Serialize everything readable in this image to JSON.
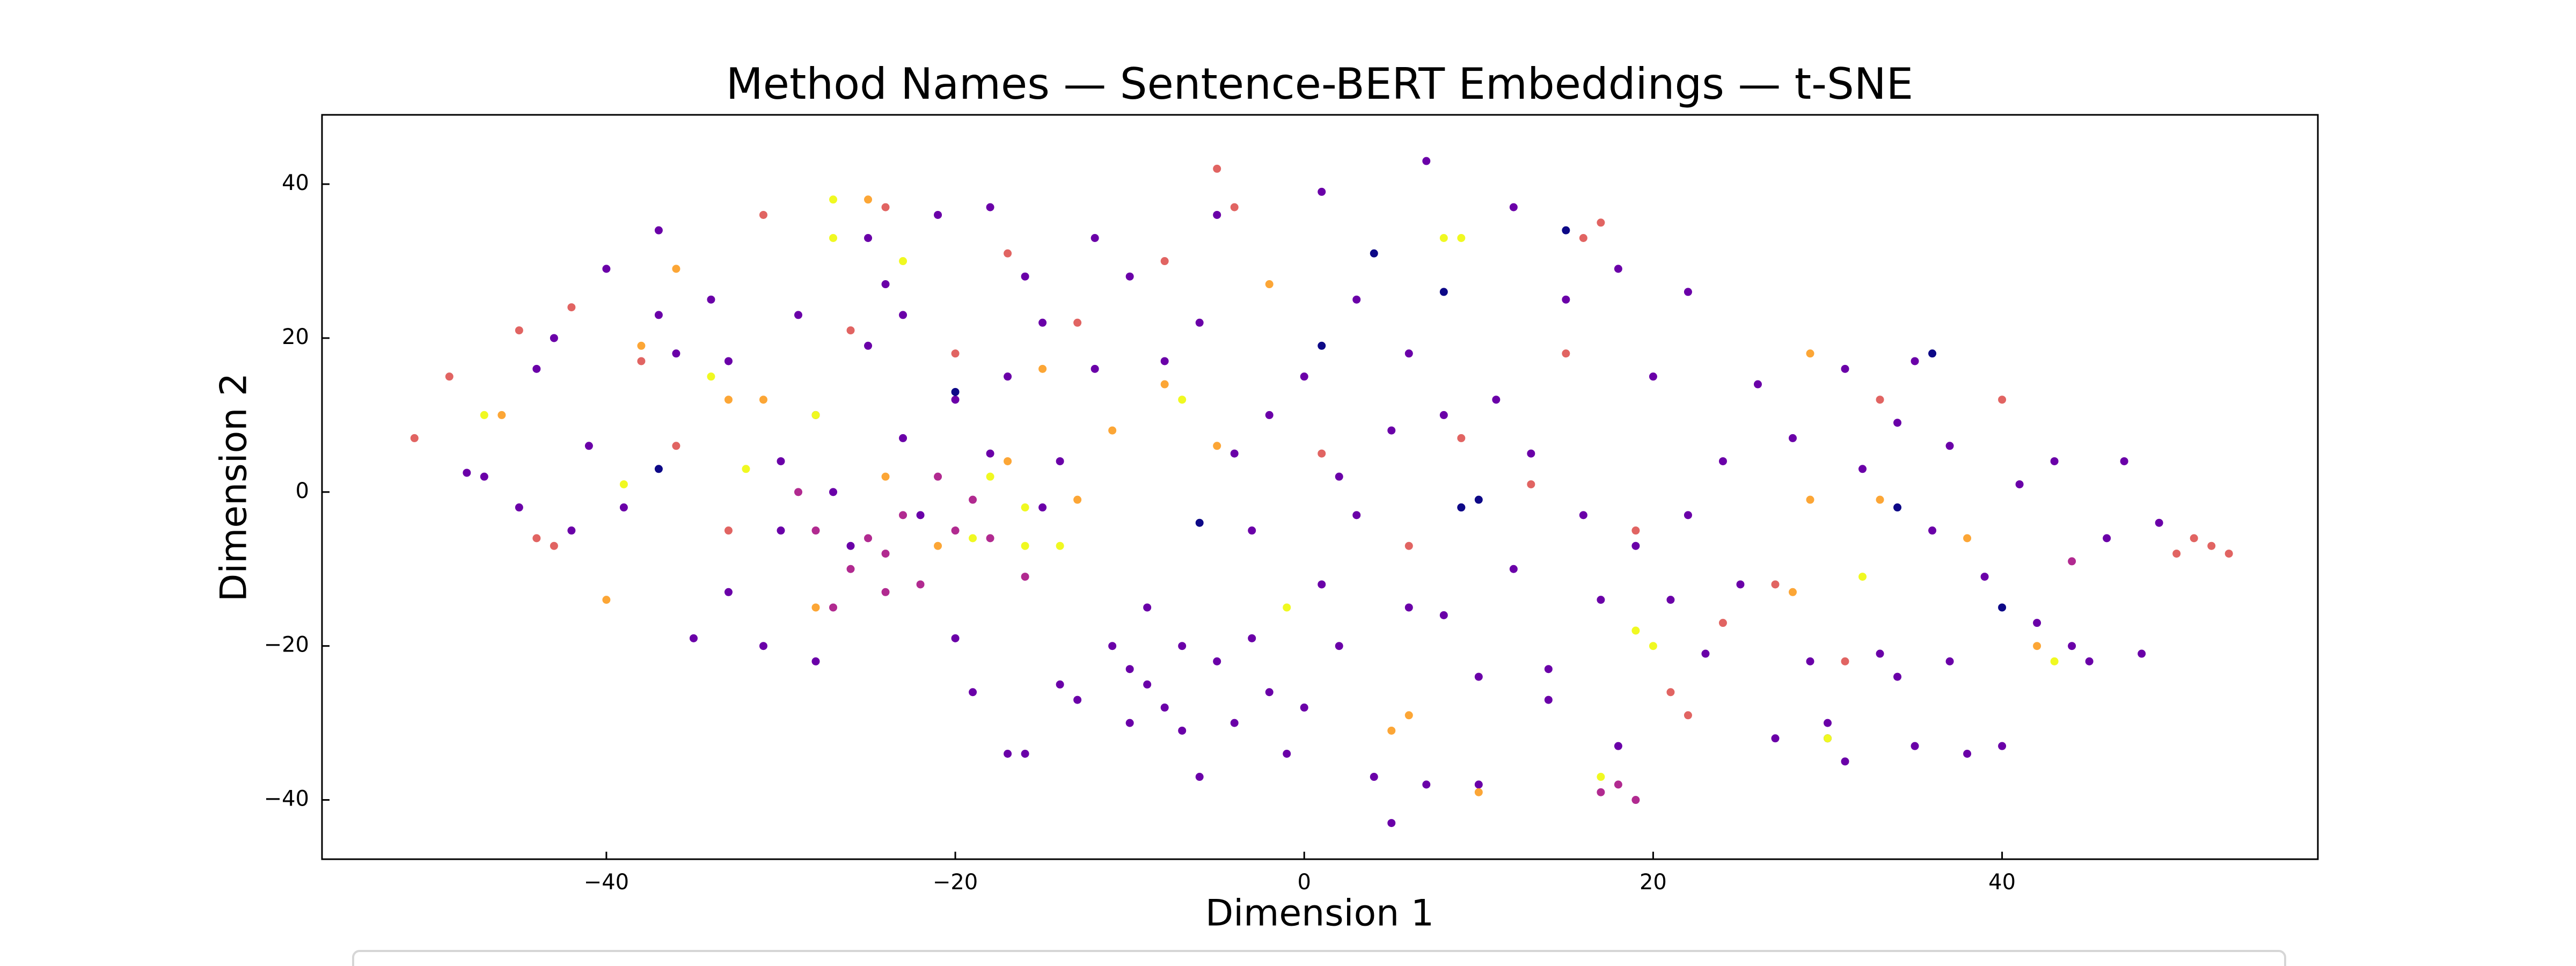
{
  "chart_data": {
    "type": "scatter",
    "title": "Method Names — Sentence-BERT Embeddings — t-SNE",
    "xlabel": "Dimension 1",
    "ylabel": "Dimension 2",
    "xlim": [
      -56.3,
      58.1
    ],
    "ylim": [
      -47.7,
      49
    ],
    "xticks": [
      {
        "value": -40,
        "label": "−40"
      },
      {
        "value": -20,
        "label": "−20"
      },
      0,
      20,
      40
    ],
    "yticks": [
      {
        "value": -40,
        "label": "−40"
      },
      {
        "value": -20,
        "label": "−20"
      },
      0,
      20,
      40
    ],
    "series": [
      {
        "color": "#6a00a8",
        "x": [
          -48,
          -47,
          -45,
          -44,
          -43,
          -42,
          -41,
          -40,
          -39,
          -37,
          -37,
          -36,
          -35,
          -34,
          -33,
          -33,
          -31,
          -30,
          -29,
          -28,
          -28,
          -27,
          -26,
          -25,
          -25,
          -24,
          -23,
          -22,
          -21,
          -20,
          -20,
          -19,
          -18,
          -18,
          -17,
          -16,
          -16,
          -15,
          -15,
          -14,
          -14,
          -13,
          -12,
          -12,
          -11,
          -10,
          -10,
          -9,
          -9,
          -8,
          -8,
          -7,
          -7,
          -6,
          -6,
          -5,
          -5,
          -4,
          -4,
          -3,
          -2,
          -2,
          -1,
          0,
          0,
          1,
          1,
          2,
          3,
          3,
          4,
          5,
          5,
          6,
          6,
          7,
          7,
          8,
          8,
          9,
          10,
          10,
          11,
          12,
          12,
          13,
          14,
          14,
          15,
          16,
          17,
          18,
          18,
          19,
          20,
          21,
          22,
          22,
          23,
          24,
          25,
          26,
          27,
          28,
          29,
          30,
          31,
          31,
          32,
          33,
          34,
          34,
          35,
          35,
          36,
          37,
          37,
          38,
          39,
          40,
          41,
          42,
          43,
          44,
          45,
          46,
          47,
          48,
          49,
          -3,
          -23,
          -10,
          2,
          -17,
          -30
        ],
        "values": [
          2.5,
          2,
          -2,
          16,
          20,
          -5,
          6,
          29,
          -2,
          34,
          23,
          18,
          -19,
          25,
          17,
          -13,
          -20,
          4,
          23,
          -22,
          10,
          0,
          -7,
          33,
          19,
          27,
          7,
          -3,
          36,
          12,
          -19,
          -26,
          37,
          5,
          -34,
          -34,
          28,
          22,
          -2,
          4,
          -25,
          -27,
          33,
          16,
          -20,
          -23,
          -30,
          -15,
          -25,
          -28,
          17,
          -20,
          -31,
          -37,
          22,
          -22,
          36,
          -30,
          5,
          -19,
          -26,
          10,
          -34,
          -28,
          15,
          39,
          -12,
          -20,
          25,
          -3,
          -37,
          -43,
          8,
          -15,
          18,
          -38,
          43,
          10,
          -16,
          -2,
          -24,
          -38,
          12,
          37,
          -10,
          5,
          -23,
          -27,
          25,
          -3,
          -14,
          29,
          -33,
          -7,
          15,
          -14,
          -3,
          26,
          -21,
          4,
          -12,
          14,
          -32,
          7,
          -22,
          -30,
          16,
          -35,
          3,
          -21,
          9,
          -24,
          17,
          -33,
          -5,
          -22,
          6,
          -34,
          -11,
          -33,
          1,
          -17,
          4,
          -20,
          -22,
          -6,
          4,
          -21,
          -4,
          -5,
          23,
          28,
          2,
          15,
          -5
        ]
      },
      {
        "color": "#0d0887",
        "x": [
          -37,
          -20,
          -6,
          1,
          4,
          8,
          9,
          10,
          15,
          30,
          34,
          36,
          40
        ],
        "values": [
          3,
          13,
          -4,
          19,
          31,
          26,
          -2,
          -1,
          34,
          -32,
          -2,
          18,
          -15
        ]
      },
      {
        "color": "#b12a90",
        "x": [
          -28,
          -26,
          -24,
          -22,
          -21,
          -20,
          -19,
          -24,
          -27,
          17,
          18,
          19,
          -18,
          -25,
          -16,
          44,
          -29,
          -23
        ],
        "values": [
          -5,
          -10,
          -8,
          -12,
          2,
          -5,
          -1,
          -13,
          -15,
          -39,
          -38,
          -40,
          -6,
          -6,
          -11,
          -9,
          0,
          -3
        ]
      },
      {
        "color": "#e16462",
        "x": [
          -51,
          -49,
          -45,
          -44,
          -43,
          -42,
          -38,
          -36,
          -33,
          -31,
          -26,
          -24,
          -20,
          -17,
          -13,
          -8,
          -4,
          -5,
          1,
          6,
          9,
          13,
          15,
          16,
          17,
          19,
          21,
          22,
          24,
          27,
          33,
          40,
          51,
          52,
          53,
          50,
          31
        ],
        "values": [
          7,
          15,
          21,
          -6,
          -7,
          24,
          17,
          6,
          -5,
          36,
          21,
          37,
          18,
          31,
          22,
          30,
          37,
          42,
          5,
          -7,
          7,
          1,
          18,
          33,
          35,
          -5,
          -26,
          -29,
          -17,
          -12,
          12,
          12,
          -6,
          -7,
          -8,
          -8,
          -22
        ]
      },
      {
        "color": "#fca636",
        "x": [
          -46,
          -40,
          -38,
          -36,
          -33,
          -31,
          -28,
          -25,
          -24,
          -21,
          -17,
          -15,
          -13,
          -11,
          -8,
          -5,
          -2,
          5,
          6,
          10,
          28,
          29,
          29,
          33,
          38,
          42
        ],
        "values": [
          10,
          -14,
          19,
          29,
          12,
          12,
          -15,
          38,
          2,
          -7,
          4,
          16,
          -1,
          8,
          14,
          6,
          27,
          -31,
          -29,
          -39,
          -13,
          -1,
          18,
          -1,
          -6,
          -20
        ]
      },
      {
        "color": "#f0f921",
        "x": [
          -47,
          -39,
          -32,
          -28,
          -27,
          -27,
          -23,
          -19,
          -18,
          -16,
          -16,
          -14,
          -7,
          -1,
          8,
          9,
          17,
          19,
          20,
          30,
          32,
          43,
          -34
        ],
        "values": [
          10,
          1,
          3,
          10,
          38,
          33,
          30,
          -6,
          2,
          -2,
          -7,
          -7,
          12,
          -15,
          33,
          33,
          -37,
          -18,
          -20,
          -32,
          -11,
          -22,
          15
        ]
      }
    ]
  }
}
